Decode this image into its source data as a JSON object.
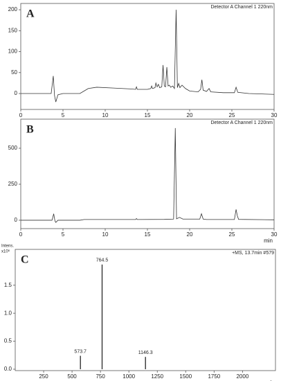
{
  "chart_data": [
    {
      "type": "line",
      "panel_label": "A",
      "title": "Detector A Channel 1 220nm",
      "color": "#333333",
      "x": [
        0,
        3.6,
        3.85,
        4.0,
        4.15,
        4.4,
        5,
        7,
        7.5,
        8,
        9,
        11,
        13,
        13.6,
        13.7,
        13.8,
        15,
        15.4,
        15.5,
        15.6,
        15.9,
        16.0,
        16.15,
        16.3,
        16.45,
        16.7,
        16.85,
        17.0,
        17.15,
        17.3,
        17.45,
        17.6,
        17.75,
        18.0,
        18.2,
        18.4,
        18.55,
        18.7,
        18.85,
        19.1,
        19.5,
        20,
        21,
        21.3,
        21.45,
        21.6,
        22,
        22.3,
        22.5,
        24,
        25.3,
        25.5,
        25.7,
        27,
        30
      ],
      "y": [
        0,
        0,
        42,
        -5,
        -20,
        -3,
        0,
        0,
        6,
        12,
        15,
        13,
        11,
        10,
        16,
        10,
        10,
        12,
        18,
        12,
        14,
        25,
        16,
        22,
        14,
        16,
        68,
        18,
        16,
        63,
        18,
        20,
        15,
        18,
        12,
        200,
        14,
        24,
        14,
        20,
        12,
        6,
        4,
        10,
        33,
        8,
        5,
        12,
        4,
        2,
        2,
        15,
        3,
        0,
        -2
      ],
      "xlim": [
        0,
        30
      ],
      "xticks": [
        0,
        5,
        10,
        15,
        20,
        25,
        30
      ],
      "ylim": [
        -38,
        215
      ],
      "yticks": [
        0,
        50,
        100,
        150,
        200
      ]
    },
    {
      "type": "line",
      "panel_label": "B",
      "title": "Detector A Channel 1 220nm",
      "xlabel": "min",
      "color": "#333333",
      "x": [
        0,
        3.7,
        3.9,
        4.05,
        4.15,
        4.4,
        7,
        7.5,
        10,
        13.6,
        13.7,
        13.8,
        17,
        18.1,
        18.3,
        18.45,
        18.8,
        19.2,
        21.2,
        21.4,
        21.6,
        22,
        25.3,
        25.5,
        25.65,
        25.8,
        30
      ],
      "y": [
        0,
        0,
        45,
        -5,
        -15,
        0,
        0,
        5,
        5,
        5,
        12,
        5,
        6,
        8,
        640,
        10,
        20,
        8,
        8,
        45,
        8,
        5,
        5,
        75,
        30,
        6,
        3
      ],
      "xlim": [
        0,
        30
      ],
      "xticks": [
        0,
        5,
        10,
        15,
        20,
        25,
        30
      ],
      "ylim": [
        -58,
        702
      ],
      "yticks": [
        0,
        250,
        500
      ]
    },
    {
      "type": "stem",
      "panel_label": "C",
      "title": "+MS, 13.7min #579",
      "xlabel": "m/z",
      "ylabel": "Intens.",
      "y_multiplier": "x10⁶",
      "color": "#333333",
      "x": [
        573.7,
        764.5,
        1146.3
      ],
      "y": [
        0.24,
        1.87,
        0.22
      ],
      "xlim": [
        0,
        2290
      ],
      "xticks": [
        250,
        500,
        750,
        1000,
        1250,
        1500,
        1750,
        2000
      ],
      "ylim": [
        -0.025,
        2.14
      ],
      "yticks": [
        {
          "value": 0,
          "label": "0.0"
        },
        {
          "value": 0.5,
          "label": "0.5"
        },
        {
          "value": 1,
          "label": "1.0"
        },
        {
          "value": 1.5,
          "label": "1.5"
        }
      ]
    }
  ]
}
